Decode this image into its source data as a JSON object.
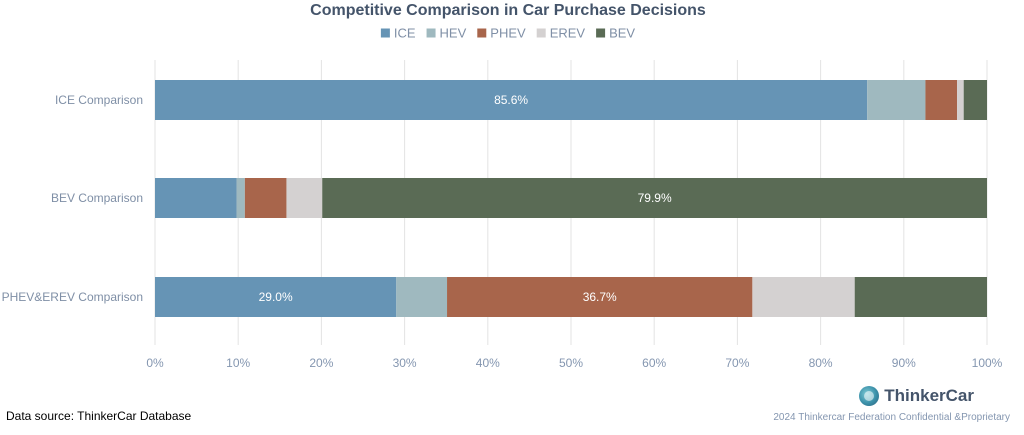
{
  "colors": {
    "ICE": "#6694b5",
    "HEV": "#9fb9bf",
    "PHEV": "#a8654b",
    "EREV": "#d4d1d1",
    "BEV": "#5a6b55",
    "grid": "#e3e3e3",
    "title": "#44546a"
  },
  "chart_data": {
    "type": "bar",
    "orientation": "horizontal",
    "stacked": true,
    "title": "Competitive Comparison in Car Purchase Decisions",
    "legend": [
      "ICE",
      "HEV",
      "PHEV",
      "EREV",
      "BEV"
    ],
    "legend_position": "top",
    "categories": [
      "ICE Comparison",
      "BEV Comparison",
      "PHEV&EREV Comparison"
    ],
    "series": [
      {
        "name": "ICE",
        "values": [
          85.6,
          9.8,
          29.0
        ]
      },
      {
        "name": "HEV",
        "values": [
          7.0,
          1.0,
          6.1
        ]
      },
      {
        "name": "PHEV",
        "values": [
          3.8,
          5.0,
          36.7
        ]
      },
      {
        "name": "EREV",
        "values": [
          0.8,
          4.3,
          12.3
        ]
      },
      {
        "name": "BEV",
        "values": [
          2.8,
          79.9,
          15.9
        ]
      }
    ],
    "data_labels": [
      {
        "category": 0,
        "series": 0,
        "text": "85.6%"
      },
      {
        "category": 1,
        "series": 4,
        "text": "79.9%"
      },
      {
        "category": 2,
        "series": 0,
        "text": "29.0%"
      },
      {
        "category": 2,
        "series": 2,
        "text": "36.7%"
      }
    ],
    "x_ticks": [
      "0%",
      "10%",
      "20%",
      "30%",
      "40%",
      "50%",
      "60%",
      "70%",
      "80%",
      "90%",
      "100%"
    ],
    "xlim": [
      0,
      100
    ],
    "grid": true
  },
  "footer": {
    "source": "Data source: ThinkerCar Database",
    "brand": "ThinkerCar",
    "confidential": "2024 Thinkercar Federation Confidential &Proprietary"
  }
}
